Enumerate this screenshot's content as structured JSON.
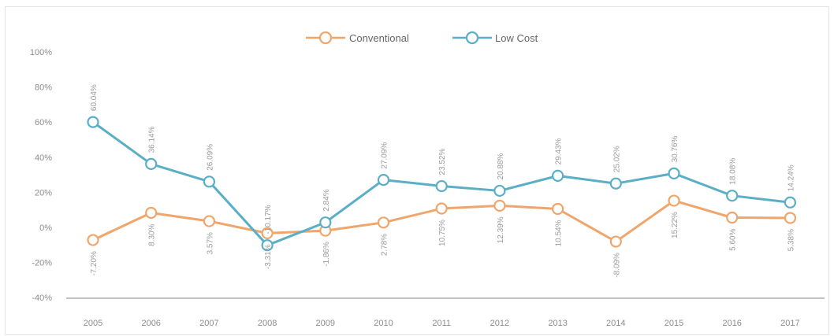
{
  "chart_data": {
    "type": "line",
    "categories": [
      "2005",
      "2006",
      "2007",
      "2008",
      "2009",
      "2010",
      "2011",
      "2012",
      "2013",
      "2014",
      "2015",
      "2016",
      "2017"
    ],
    "series": [
      {
        "name": "Conventional",
        "color": "#f0a56b",
        "values": [
          -7.2,
          8.3,
          3.57,
          -3.31,
          -1.86,
          2.78,
          10.75,
          12.39,
          10.54,
          -8.09,
          15.22,
          5.6,
          5.38
        ],
        "labels": [
          "-7.20%",
          "8.30%",
          "3.57%",
          "-3.31%",
          "-1.86%",
          "2.78%",
          "10.75%",
          "12.39%",
          "10.54%",
          "-8.09%",
          "15.22%",
          "5.60%",
          "5.38%"
        ]
      },
      {
        "name": "Low Cost",
        "color": "#5aaec6",
        "values": [
          60.04,
          36.14,
          26.09,
          -10.17,
          2.84,
          27.09,
          23.52,
          20.88,
          29.43,
          25.02,
          30.76,
          18.08,
          14.24
        ],
        "labels": [
          "60.04%",
          "36.14%",
          "26.09%",
          "-10.17%",
          "2.84%",
          "27.09%",
          "23.52%",
          "20.88%",
          "29.43%",
          "25.02%",
          "30.76%",
          "18.08%",
          "14.24%"
        ]
      }
    ],
    "yticks": [
      "-40%",
      "-20%",
      "0%",
      "20%",
      "40%",
      "60%",
      "80%",
      "100%"
    ],
    "ytick_values": [
      -40,
      -20,
      0,
      20,
      40,
      60,
      80,
      100
    ],
    "ylim": [
      -40,
      100
    ],
    "legend_position": "top-center",
    "grid": false
  }
}
